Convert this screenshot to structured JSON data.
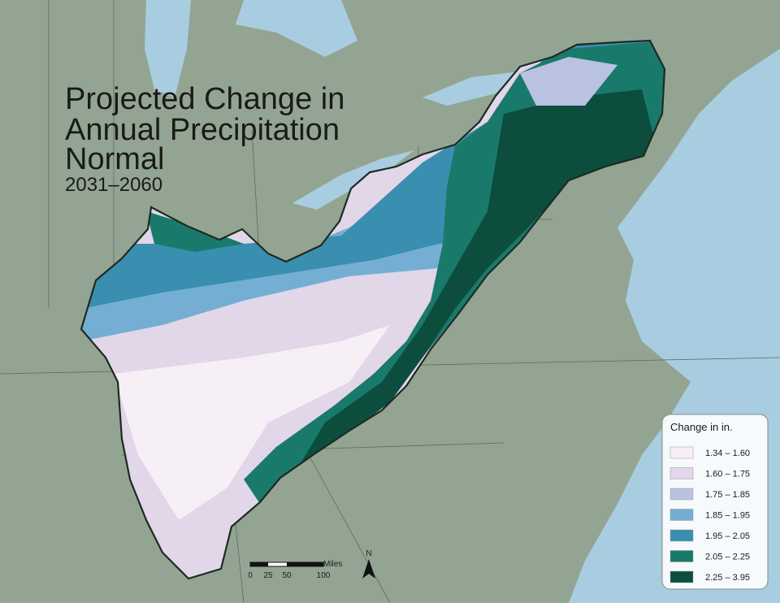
{
  "title_lines": [
    "Projected Change in",
    "Annual Precipitation",
    "Normal"
  ],
  "subtitle": "2031–2060",
  "legend": {
    "title": "Change in in.",
    "items": [
      {
        "label": "1.34 – 1.60",
        "color": "#f6eff6"
      },
      {
        "label": "1.60 – 1.75",
        "color": "#e2d6e9"
      },
      {
        "label": "1.75 – 1.85",
        "color": "#b9c3e1"
      },
      {
        "label": "1.85 – 1.95",
        "color": "#74afd3"
      },
      {
        "label": "1.95 – 2.05",
        "color": "#3a8eb0"
      },
      {
        "label": "2.05 – 2.25",
        "color": "#197a6b"
      },
      {
        "label": "2.25 – 3.95",
        "color": "#0d4d3d"
      }
    ]
  },
  "scale_bar": {
    "unit": "Miles",
    "labels": [
      "0",
      "25",
      "50",
      "100"
    ]
  },
  "north_arrow": "N"
}
